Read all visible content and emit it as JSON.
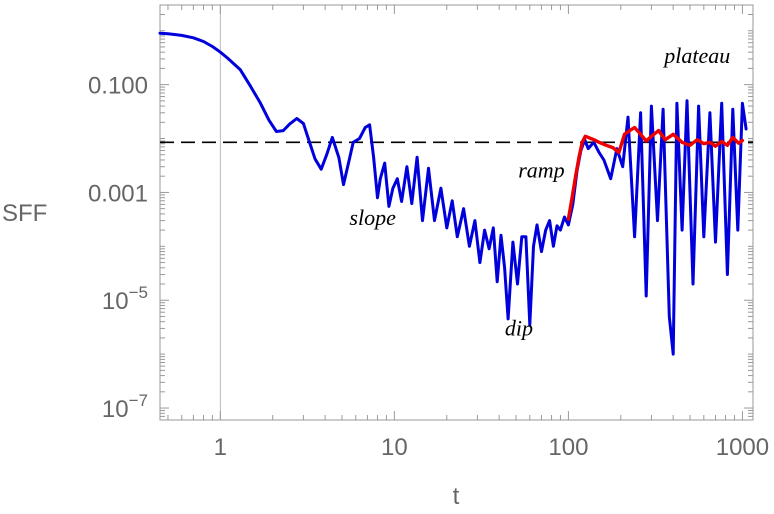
{
  "chart_data": {
    "type": "line",
    "xscale": "log",
    "yscale": "log",
    "xlabel": "t",
    "ylabel": "SFF",
    "xlim": [
      0.45,
      1150
    ],
    "ylim": [
      6e-08,
      3.0
    ],
    "x_ticks": [
      {
        "value": 1,
        "label": "1"
      },
      {
        "value": 10,
        "label": "10"
      },
      {
        "value": 100,
        "label": "100"
      },
      {
        "value": 1000,
        "label": "1000"
      }
    ],
    "y_ticks": [
      {
        "value": 0.1,
        "label": "0.100",
        "mantissa": "",
        "exponent": ""
      },
      {
        "value": 0.001,
        "label": "0.001",
        "mantissa": "",
        "exponent": ""
      },
      {
        "value": 1e-05,
        "label": "",
        "mantissa": "10",
        "exponent": "−5"
      },
      {
        "value": 1e-07,
        "label": "",
        "mantissa": "10",
        "exponent": "−7"
      }
    ],
    "reference_line": {
      "y": 0.0085,
      "style": "dashed",
      "color": "#000000"
    },
    "vertical_line": {
      "x": 1,
      "color": "#bbbbbb"
    },
    "series": [
      {
        "color": "#0000dd",
        "x": [
          0.45,
          0.5,
          0.6,
          0.7,
          0.8,
          0.9,
          1.0,
          1.1,
          1.3,
          1.5,
          1.7,
          1.9,
          2.1,
          2.3,
          2.5,
          2.75,
          3.0,
          3.2,
          3.5,
          3.8,
          4.1,
          4.4,
          4.8,
          5.1,
          5.5,
          5.8,
          6.3,
          6.8,
          7.2,
          7.6,
          8.0,
          8.3,
          8.8,
          9.3,
          9.8,
          10.4,
          11.0,
          11.8,
          12.6,
          13.5,
          14.5,
          15.7,
          17.0,
          18.5,
          20.0,
          21.5,
          23.0,
          25.0,
          27.0,
          29.0,
          31.0,
          33.0,
          35.0,
          37.0,
          39.0,
          41.0,
          43.0,
          45.0,
          48.0,
          51.0,
          54.0,
          57.0,
          60.0,
          63.0,
          66.0,
          70.0,
          74.0,
          78.0,
          82.0,
          86.0,
          90.0,
          95.0,
          100.0,
          106.0,
          112.0,
          118.0,
          124.0,
          130.0,
          140.0,
          150.0,
          160.0,
          175.0,
          190.0,
          205.0,
          220.0,
          240.0,
          260.0,
          280.0,
          300.0,
          325.0,
          350.0,
          380.0,
          400.0,
          420.0,
          450.0,
          480.0,
          520.0,
          560.0,
          600.0,
          650.0,
          700.0,
          760.0,
          820.0,
          880.0,
          940.0,
          1000.0,
          1050.0
        ],
        "y": [
          0.9,
          0.88,
          0.82,
          0.74,
          0.63,
          0.51,
          0.4,
          0.31,
          0.19,
          0.09,
          0.045,
          0.022,
          0.0135,
          0.014,
          0.0185,
          0.0235,
          0.019,
          0.01,
          0.0042,
          0.0027,
          0.0052,
          0.0105,
          0.0044,
          0.0014,
          0.004,
          0.0085,
          0.01,
          0.016,
          0.018,
          0.0045,
          0.0008,
          0.0018,
          0.0035,
          0.00055,
          0.0012,
          0.0018,
          0.00068,
          0.003,
          0.00062,
          0.0045,
          0.0003,
          0.0028,
          0.0003,
          0.0012,
          0.00022,
          0.0007,
          0.00015,
          0.0005,
          0.0001,
          0.0003,
          5e-05,
          0.0002,
          9e-05,
          0.00022,
          2.2e-05,
          0.00016,
          4e-05,
          4.5e-06,
          0.00012,
          2e-05,
          0.00015,
          0.00015,
          3.5e-06,
          0.0001,
          0.00025,
          8e-05,
          0.0002,
          0.0003,
          0.0001,
          0.00024,
          0.0002,
          0.00035,
          0.00025,
          0.0006,
          0.0025,
          0.006,
          0.0095,
          0.0065,
          0.0085,
          0.0055,
          0.004,
          0.0018,
          0.0065,
          0.003,
          0.025,
          0.00015,
          0.03,
          1.2e-05,
          0.04,
          0.0003,
          0.035,
          5e-06,
          1e-06,
          0.045,
          0.0002,
          0.05,
          2e-05,
          0.04,
          0.00015,
          0.03,
          0.00012,
          0.045,
          3e-05,
          0.035,
          0.0002,
          0.045,
          0.015
        ]
      },
      {
        "color": "#ee0000",
        "x": [
          100,
          105,
          110,
          115,
          120,
          125,
          130,
          140,
          150,
          165,
          180,
          195,
          210,
          225,
          240,
          260,
          280,
          300,
          330,
          360,
          400,
          450,
          500,
          550,
          600,
          650,
          700,
          760,
          820,
          880,
          950,
          1000
        ],
        "y": [
          0.00032,
          0.0008,
          0.002,
          0.0045,
          0.0085,
          0.011,
          0.0105,
          0.0095,
          0.0085,
          0.0075,
          0.0068,
          0.0055,
          0.012,
          0.014,
          0.016,
          0.012,
          0.009,
          0.011,
          0.014,
          0.0095,
          0.012,
          0.0085,
          0.0075,
          0.0095,
          0.008,
          0.0085,
          0.0072,
          0.0088,
          0.0075,
          0.0105,
          0.0082,
          0.0092
        ]
      }
    ],
    "annotations": [
      {
        "text": "plateau",
        "x": 550,
        "y": 0.25
      },
      {
        "text": "ramp",
        "x": 70,
        "y": 0.0019
      },
      {
        "text": "slope",
        "x": 7.5,
        "y": 0.00025
      },
      {
        "text": "dip",
        "x": 52,
        "y": 2.2e-06
      }
    ]
  }
}
